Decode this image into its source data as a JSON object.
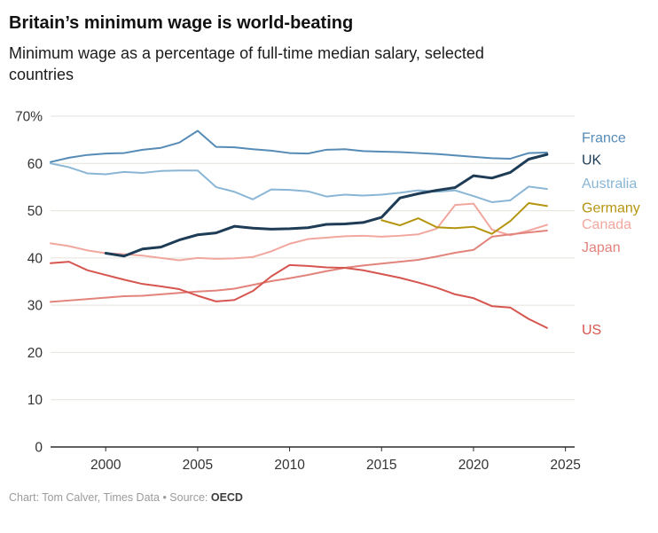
{
  "header": {
    "title": "Britain’s minimum wage is world-beating",
    "subtitle": "Minimum wage as a percentage of full-time median salary, selected countries"
  },
  "footer": {
    "credit": "Chart: Tom Calver, Times Data • Source: ",
    "source": "OECD"
  },
  "chart_data": {
    "type": "line",
    "title": "Britain’s minimum wage is world-beating",
    "subtitle": "Minimum wage as a percentage of full-time median salary, selected countries",
    "xlabel": "",
    "ylabel": "",
    "xlim": [
      1997,
      2025.5
    ],
    "ylim": [
      0,
      70
    ],
    "x_ticks": [
      2000,
      2005,
      2010,
      2015,
      2020,
      2025
    ],
    "y_ticks": [
      0,
      10,
      20,
      30,
      40,
      50,
      60,
      70
    ],
    "y_tick_labels": [
      "0",
      "10",
      "20",
      "30",
      "40",
      "50",
      "60",
      "70%"
    ],
    "grid": "horizontal",
    "legend": "direct-labels-right",
    "series": [
      {
        "name": "France",
        "color": "#568bb6",
        "width": 2,
        "label_y": 65.4,
        "x": [
          1997,
          1998,
          1999,
          2000,
          2001,
          2002,
          2003,
          2004,
          2005,
          2006,
          2007,
          2008,
          2009,
          2010,
          2011,
          2012,
          2013,
          2014,
          2015,
          2016,
          2017,
          2018,
          2019,
          2020,
          2021,
          2022,
          2023,
          2024
        ],
        "values": [
          60.3,
          61.2,
          61.8,
          62.1,
          62.2,
          62.9,
          63.3,
          64.4,
          66.9,
          63.5,
          63.4,
          63.0,
          62.7,
          62.2,
          62.1,
          62.9,
          63.0,
          62.6,
          62.5,
          62.4,
          62.2,
          62.0,
          61.7,
          61.4,
          61.1,
          61.0,
          62.2,
          62.3
        ]
      },
      {
        "name": "Australia",
        "color": "#8ab6d6",
        "width": 2,
        "label_y": 55.7,
        "x": [
          1997,
          1998,
          1999,
          2000,
          2001,
          2002,
          2003,
          2004,
          2005,
          2006,
          2007,
          2008,
          2009,
          2010,
          2011,
          2012,
          2013,
          2014,
          2015,
          2016,
          2017,
          2018,
          2019,
          2020,
          2021,
          2022,
          2023,
          2024
        ],
        "values": [
          60.0,
          59.2,
          57.9,
          57.7,
          58.2,
          58.0,
          58.4,
          58.5,
          58.5,
          55.0,
          54.0,
          52.4,
          54.5,
          54.4,
          54.1,
          53.0,
          53.4,
          53.2,
          53.4,
          53.8,
          54.3,
          54.0,
          54.3,
          53.1,
          51.8,
          52.2,
          55.1,
          54.6
        ]
      },
      {
        "name": "Canada",
        "color": "#f2a79e",
        "width": 2,
        "label_y": 47.1,
        "x": [
          1997,
          1998,
          1999,
          2000,
          2001,
          2002,
          2003,
          2004,
          2005,
          2006,
          2007,
          2008,
          2009,
          2010,
          2011,
          2012,
          2013,
          2014,
          2015,
          2016,
          2017,
          2018,
          2019,
          2020,
          2021,
          2022,
          2023,
          2024
        ],
        "values": [
          43.1,
          42.5,
          41.6,
          41.0,
          40.8,
          40.5,
          40.0,
          39.5,
          40.0,
          39.8,
          39.9,
          40.2,
          41.4,
          43.0,
          44.0,
          44.3,
          44.6,
          44.7,
          44.5,
          44.7,
          45.0,
          46.2,
          51.2,
          51.5,
          46.0,
          44.8,
          45.8,
          47.0
        ]
      },
      {
        "name": "Japan",
        "color": "#e2837c",
        "width": 2,
        "label_y": 42.2,
        "x": [
          1997,
          1998,
          1999,
          2000,
          2001,
          2002,
          2003,
          2004,
          2005,
          2006,
          2007,
          2008,
          2009,
          2010,
          2011,
          2012,
          2013,
          2014,
          2015,
          2016,
          2017,
          2018,
          2019,
          2020,
          2021,
          2022,
          2023,
          2024
        ],
        "values": [
          30.7,
          31.0,
          31.3,
          31.6,
          31.9,
          32.0,
          32.3,
          32.6,
          32.9,
          33.1,
          33.5,
          34.3,
          35.1,
          35.7,
          36.4,
          37.2,
          37.9,
          38.4,
          38.8,
          39.2,
          39.6,
          40.3,
          41.1,
          41.7,
          44.5,
          45.0,
          45.4,
          45.8
        ]
      },
      {
        "name": "US",
        "color": "#d6554f",
        "width": 2,
        "label_y": 24.8,
        "x": [
          1997,
          1998,
          1999,
          2000,
          2001,
          2002,
          2003,
          2004,
          2005,
          2006,
          2007,
          2008,
          2009,
          2010,
          2011,
          2012,
          2013,
          2014,
          2015,
          2016,
          2017,
          2018,
          2019,
          2020,
          2021,
          2022,
          2023,
          2024
        ],
        "values": [
          38.9,
          39.2,
          37.4,
          36.4,
          35.4,
          34.5,
          34.0,
          33.4,
          32.0,
          30.8,
          31.1,
          33.0,
          36.1,
          38.5,
          38.3,
          38.0,
          37.9,
          37.4,
          36.6,
          35.8,
          34.8,
          33.7,
          32.3,
          31.5,
          29.8,
          29.5,
          27.1,
          25.2
        ]
      },
      {
        "name": "Germany",
        "color": "#b5950f",
        "width": 2,
        "label_y": 50.6,
        "x": [
          2015,
          2016,
          2017,
          2018,
          2019,
          2020,
          2021,
          2022,
          2023,
          2024
        ],
        "values": [
          48.0,
          46.9,
          48.4,
          46.5,
          46.3,
          46.6,
          45.1,
          47.8,
          51.6,
          51.0
        ]
      },
      {
        "name": "UK",
        "color": "#1e3c55",
        "width": 3,
        "label_y": 60.7,
        "x": [
          2000,
          2001,
          2002,
          2003,
          2004,
          2005,
          2006,
          2007,
          2008,
          2009,
          2010,
          2011,
          2012,
          2013,
          2014,
          2015,
          2016,
          2017,
          2018,
          2019,
          2020,
          2021,
          2022,
          2023,
          2024
        ],
        "values": [
          41.0,
          40.4,
          41.9,
          42.3,
          43.8,
          44.9,
          45.3,
          46.7,
          46.3,
          46.1,
          46.2,
          46.4,
          47.1,
          47.2,
          47.5,
          48.6,
          52.7,
          53.6,
          54.3,
          54.9,
          57.4,
          56.9,
          58.1,
          60.9,
          61.9
        ]
      }
    ]
  }
}
